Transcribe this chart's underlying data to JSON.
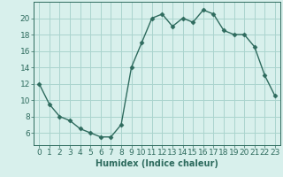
{
  "x": [
    0,
    1,
    2,
    3,
    4,
    5,
    6,
    7,
    8,
    9,
    10,
    11,
    12,
    13,
    14,
    15,
    16,
    17,
    18,
    19,
    20,
    21,
    22,
    23
  ],
  "y": [
    12,
    9.5,
    8,
    7.5,
    6.5,
    6,
    5.5,
    5.5,
    7,
    14,
    17,
    20,
    20.5,
    19,
    20,
    19.5,
    21,
    20.5,
    18.5,
    18,
    18,
    16.5,
    13,
    10.5
  ],
  "line_color": "#2e6b5e",
  "marker": "D",
  "marker_size": 2.5,
  "bg_color": "#d8f0ec",
  "grid_color": "#aad4ce",
  "xlabel": "Humidex (Indice chaleur)",
  "xlim": [
    -0.5,
    23.5
  ],
  "ylim": [
    4.5,
    22
  ],
  "xticks": [
    0,
    1,
    2,
    3,
    4,
    5,
    6,
    7,
    8,
    9,
    10,
    11,
    12,
    13,
    14,
    15,
    16,
    17,
    18,
    19,
    20,
    21,
    22,
    23
  ],
  "yticks": [
    6,
    8,
    10,
    12,
    14,
    16,
    18,
    20
  ],
  "tick_color": "#2e6b5e",
  "label_color": "#2e6b5e",
  "xlabel_fontsize": 7,
  "tick_fontsize": 6.5
}
